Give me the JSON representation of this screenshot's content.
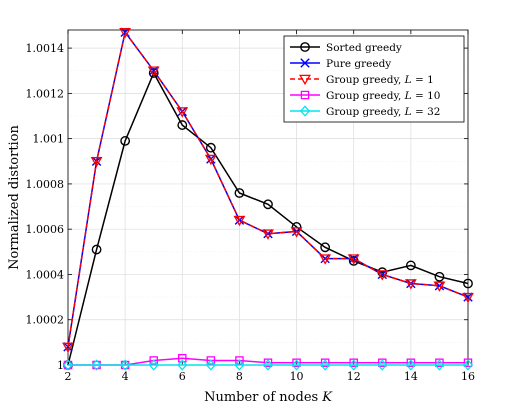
{
  "chart_data": {
    "type": "line",
    "xlabel": "Number of nodes",
    "xlabel_var": "K",
    "ylabel": "Normalized distortion",
    "xlim": [
      2,
      16
    ],
    "ylim": [
      1.0,
      1.00148
    ],
    "xticks": [
      "2",
      "4",
      "6",
      "8",
      "10",
      "12",
      "14",
      "16"
    ],
    "yticks": [
      "1",
      "1.0002",
      "1.0004",
      "1.0006",
      "1.0008",
      "1.001",
      "1.0012",
      "1.0014"
    ],
    "grid": true,
    "legend_position": "top-right",
    "x": [
      2,
      3,
      4,
      5,
      6,
      7,
      8,
      9,
      10,
      11,
      12,
      13,
      14,
      15,
      16
    ],
    "series": [
      {
        "name": "Sorted greedy",
        "color": "#000000",
        "marker": "circle",
        "dash": "solid",
        "values": [
          1.0,
          1.00051,
          1.00099,
          1.00129,
          1.00106,
          1.00096,
          1.00076,
          1.00071,
          1.00061,
          1.00052,
          1.00046,
          1.00041,
          1.00044,
          1.00039,
          1.00036
        ]
      },
      {
        "name": "Pure greedy",
        "color": "#0000ff",
        "marker": "x",
        "dash": "solid",
        "values": [
          1.00008,
          1.0009,
          1.00147,
          1.0013,
          1.00112,
          1.00091,
          1.00064,
          1.00058,
          1.00059,
          1.00047,
          1.00047,
          1.0004,
          1.00036,
          1.00035,
          1.0003
        ]
      },
      {
        "name": "Group greedy, L = 1",
        "label_text": "Group greedy,",
        "label_var": "L",
        "label_value": "= 1",
        "color": "#ff0000",
        "marker": "triangle-down",
        "dash": "dashed",
        "values": [
          1.00008,
          1.0009,
          1.00147,
          1.0013,
          1.00112,
          1.00091,
          1.00064,
          1.00058,
          1.00059,
          1.00047,
          1.00047,
          1.0004,
          1.00036,
          1.00035,
          1.0003
        ]
      },
      {
        "name": "Group greedy, L = 10",
        "label_text": "Group greedy,",
        "label_var": "L",
        "label_value": "= 10",
        "color": "#ff00ff",
        "marker": "square",
        "dash": "solid",
        "values": [
          1.0,
          1.0,
          1.0,
          1.00002,
          1.00003,
          1.00002,
          1.00002,
          1.00001,
          1.00001,
          1.00001,
          1.00001,
          1.00001,
          1.00001,
          1.00001,
          1.00001
        ]
      },
      {
        "name": "Group greedy, L = 32",
        "label_text": "Group greedy,",
        "label_var": "L",
        "label_value": "= 32",
        "color": "#00e5ee",
        "marker": "diamond",
        "dash": "solid",
        "values": [
          1.0,
          1.0,
          1.0,
          1.0,
          1.0,
          1.0,
          1.0,
          1.0,
          1.0,
          1.0,
          1.0,
          1.0,
          1.0,
          1.0,
          1.0
        ]
      }
    ]
  }
}
